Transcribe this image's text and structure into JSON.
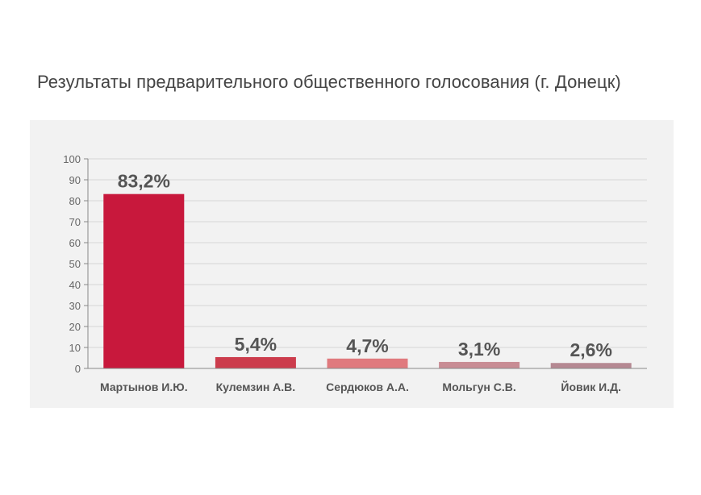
{
  "chart_data": {
    "type": "bar",
    "title": "Результаты предварительного общественного голосования (г. Донецк)",
    "xlabel": "",
    "ylabel": "",
    "ylim": [
      0,
      100
    ],
    "yticks": [
      0,
      10,
      20,
      30,
      40,
      50,
      60,
      70,
      80,
      90,
      100
    ],
    "grid": true,
    "categories": [
      "Мартынов И.Ю.",
      "Кулемзин А.В.",
      "Сердюков А.А.",
      "Мольгун С.В.",
      "Йовик И.Д."
    ],
    "values": [
      83.2,
      5.4,
      4.7,
      3.1,
      2.6
    ],
    "value_labels": [
      "83,2%",
      "5,4%",
      "4,7%",
      "3,1%",
      "2,6%"
    ],
    "colors": [
      "#c8183c",
      "#cc3c4c",
      "#e07a7e",
      "#c88c94",
      "#b58892"
    ]
  }
}
